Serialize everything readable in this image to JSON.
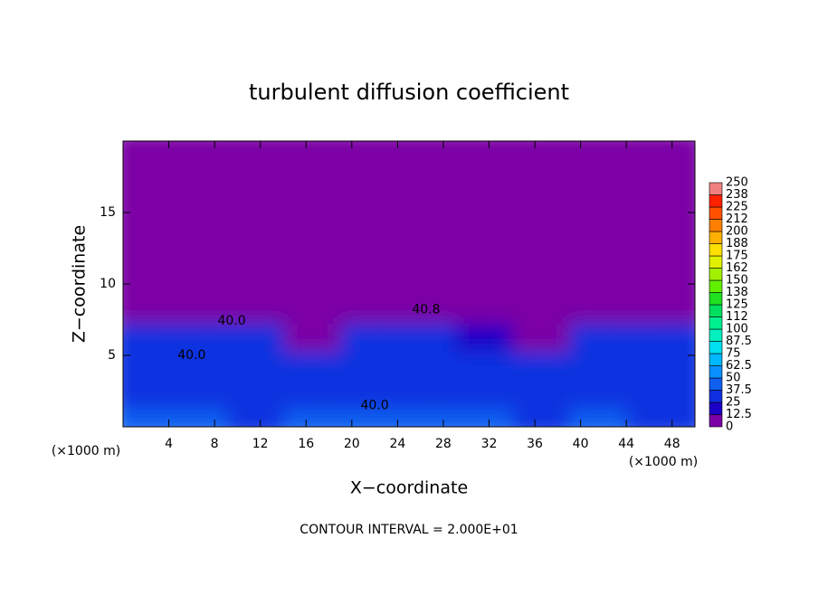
{
  "chart_data": {
    "type": "heatmap",
    "title": "turbulent diffusion coefficient",
    "x_label": "X−coordinate",
    "y_label": "Z−coordinate",
    "x_unit": "(×1000 m)",
    "y_unit": "(×1000 m)",
    "footer": "CONTOUR INTERVAL = 2.000E+01",
    "xlim": [
      0,
      50
    ],
    "ylim": [
      0,
      20
    ],
    "xticks": [
      4,
      8,
      12,
      16,
      20,
      24,
      28,
      32,
      36,
      40,
      44,
      48
    ],
    "yticks": [
      5,
      10,
      15
    ],
    "z": [
      [
        40,
        38,
        35,
        38,
        38,
        40,
        38,
        35,
        38,
        35
      ],
      [
        30,
        30,
        35,
        32,
        30,
        35,
        35,
        30,
        30,
        30
      ],
      [
        30,
        30,
        35,
        30,
        30,
        35,
        33,
        30,
        30,
        30
      ],
      [
        30,
        30,
        32,
        10,
        30,
        30,
        20,
        5,
        25,
        30
      ],
      [
        0,
        0,
        0,
        0,
        0,
        0,
        0,
        0,
        0,
        0
      ],
      [
        0,
        0,
        0,
        0,
        0,
        0,
        0,
        0,
        0,
        0
      ],
      [
        0,
        0,
        0,
        0,
        0,
        0,
        0,
        0,
        0,
        0
      ],
      [
        0,
        0,
        0,
        0,
        0,
        0,
        0,
        0,
        0,
        0
      ],
      [
        0,
        0,
        0,
        0,
        0,
        0,
        0,
        0,
        0,
        0
      ],
      [
        0,
        0,
        0,
        0,
        0,
        0,
        0,
        0,
        0,
        0
      ]
    ],
    "colorbar_ticks": [
      0,
      12.5,
      25,
      37.5,
      50,
      62.5,
      75,
      87.5,
      100,
      {
        "value": 112.5,
        "label": "112"
      },
      125,
      {
        "value": 137.5,
        "label": "138"
      },
      150,
      {
        "value": 162.5,
        "label": "162"
      },
      175,
      {
        "value": 187.5,
        "label": "188"
      },
      200,
      {
        "value": 212.5,
        "label": "212"
      },
      225,
      {
        "value": 237.5,
        "label": "238"
      },
      250
    ],
    "colors": [
      "#7b00a5",
      "#1c00c8",
      "#1030e0",
      "#1060f0",
      "#0a90ff",
      "#00b8ff",
      "#00e0f0",
      "#00f0c0",
      "#00f090",
      "#00e060",
      "#20e020",
      "#60f000",
      "#a0f000",
      "#e0f000",
      "#ffe000",
      "#ffb000",
      "#ff8000",
      "#ff5000",
      "#ff2000",
      "#f08080"
    ],
    "annotations": [
      {
        "text": "40.0",
        "x": 9.5,
        "y": 7.4
      },
      {
        "text": "40.0",
        "x": 6,
        "y": 5
      },
      {
        "text": "40.8",
        "x": 26.5,
        "y": 8.2
      },
      {
        "text": "40.0",
        "x": 22,
        "y": 1.5
      }
    ]
  }
}
